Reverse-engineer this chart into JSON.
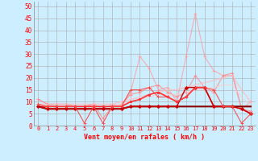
{
  "xlabel": "Vent moyen/en rafales ( km/h )",
  "background_color": "#cceeff",
  "grid_color": "#aaaaaa",
  "x": [
    0,
    1,
    2,
    3,
    4,
    5,
    6,
    7,
    8,
    9,
    10,
    11,
    12,
    13,
    14,
    15,
    16,
    17,
    18,
    19,
    20,
    21,
    22,
    23
  ],
  "ylim": [
    0,
    52
  ],
  "yticks": [
    0,
    5,
    10,
    15,
    20,
    25,
    30,
    35,
    40,
    45,
    50
  ],
  "lines": [
    {
      "y": [
        11,
        9,
        8,
        8,
        8,
        8,
        9,
        7,
        9,
        8,
        14,
        29,
        24,
        15,
        16,
        10,
        29,
        47,
        29,
        23,
        21,
        21,
        7,
        10
      ],
      "color": "#ff9999",
      "lw": 0.8,
      "marker": "+",
      "ms": 3,
      "alpha": 0.75
    },
    {
      "y": [
        11,
        9,
        9,
        9,
        8,
        8,
        9,
        3,
        8,
        9,
        13,
        14,
        16,
        17,
        14,
        12,
        14,
        21,
        16,
        14,
        21,
        22,
        7,
        6
      ],
      "color": "#ff8888",
      "lw": 0.8,
      "marker": "+",
      "ms": 3,
      "alpha": 0.8
    },
    {
      "y": [
        9,
        9,
        9,
        9,
        9,
        9,
        9,
        9,
        9,
        10,
        11,
        12,
        13,
        14,
        15,
        15,
        16,
        17,
        18,
        19,
        20,
        21,
        15,
        10
      ],
      "color": "#ffbbbb",
      "lw": 1.0,
      "marker": null,
      "ms": 0,
      "alpha": 0.75
    },
    {
      "y": [
        8,
        8,
        8,
        8,
        8,
        8,
        8,
        8,
        8,
        9,
        10,
        11,
        12,
        13,
        13,
        13,
        14,
        15,
        15,
        16,
        17,
        17,
        12,
        8
      ],
      "color": "#ffcccc",
      "lw": 1.0,
      "marker": null,
      "ms": 0,
      "alpha": 0.7
    },
    {
      "y": [
        8,
        8,
        8,
        8,
        8,
        8,
        8,
        8,
        8,
        8,
        10,
        11,
        13,
        14,
        12,
        10,
        12,
        16,
        16,
        8,
        8,
        8,
        7,
        5
      ],
      "color": "#ff3333",
      "lw": 1.2,
      "marker": "s",
      "ms": 2,
      "alpha": 1.0
    },
    {
      "y": [
        8,
        7,
        7,
        7,
        7,
        7,
        7,
        7,
        7,
        7,
        8,
        8,
        8,
        8,
        8,
        8,
        8,
        8,
        8,
        8,
        8,
        8,
        8,
        8
      ],
      "color": "#880000",
      "lw": 1.5,
      "marker": null,
      "ms": 0,
      "alpha": 1.0
    },
    {
      "y": [
        8,
        7,
        7,
        7,
        7,
        7,
        7,
        7,
        7,
        7,
        8,
        8,
        8,
        8,
        8,
        8,
        16,
        16,
        16,
        8,
        8,
        8,
        7,
        5
      ],
      "color": "#cc0000",
      "lw": 1.0,
      "marker": "D",
      "ms": 2,
      "alpha": 1.0
    },
    {
      "y": [
        9,
        8,
        8,
        8,
        8,
        1,
        8,
        1,
        8,
        8,
        15,
        15,
        16,
        12,
        12,
        10,
        12,
        16,
        16,
        15,
        8,
        8,
        1,
        5
      ],
      "color": "#ff4444",
      "lw": 0.8,
      "marker": "+",
      "ms": 3,
      "alpha": 0.9
    }
  ]
}
